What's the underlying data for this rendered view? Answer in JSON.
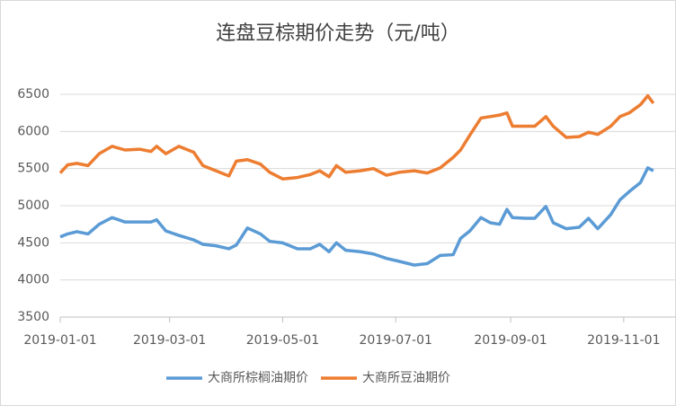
{
  "chart_data": {
    "type": "line",
    "title": "连盘豆棕期价走势（元/吨）",
    "x": [
      "2019-01-01",
      "2019-01-05",
      "2019-01-10",
      "2019-01-16",
      "2019-01-22",
      "2019-01-29",
      "2019-02-05",
      "2019-02-13",
      "2019-02-19",
      "2019-02-22",
      "2019-02-27",
      "2019-03-06",
      "2019-03-14",
      "2019-03-19",
      "2019-03-26",
      "2019-04-02",
      "2019-04-06",
      "2019-04-12",
      "2019-04-19",
      "2019-04-24",
      "2019-05-01",
      "2019-05-09",
      "2019-05-16",
      "2019-05-21",
      "2019-05-26",
      "2019-05-30",
      "2019-06-04",
      "2019-06-12",
      "2019-06-19",
      "2019-06-26",
      "2019-07-03",
      "2019-07-11",
      "2019-07-18",
      "2019-07-25",
      "2019-08-01",
      "2019-08-05",
      "2019-08-10",
      "2019-08-16",
      "2019-08-21",
      "2019-08-26",
      "2019-08-30",
      "2019-09-02",
      "2019-09-09",
      "2019-09-14",
      "2019-09-20",
      "2019-09-24",
      "2019-10-01",
      "2019-10-08",
      "2019-10-13",
      "2019-10-18",
      "2019-10-25",
      "2019-10-30",
      "2019-11-04",
      "2019-11-10",
      "2019-11-14",
      "2019-11-17"
    ],
    "series": [
      {
        "name": "大商所棕榈油期价",
        "color": "#5b9bd5",
        "values": [
          4580,
          4620,
          4650,
          4620,
          4750,
          4840,
          4780,
          4780,
          4780,
          4810,
          4660,
          4600,
          4540,
          4480,
          4460,
          4420,
          4470,
          4700,
          4620,
          4520,
          4500,
          4420,
          4420,
          4480,
          4380,
          4500,
          4400,
          4380,
          4350,
          4290,
          4250,
          4200,
          4220,
          4330,
          4340,
          4560,
          4660,
          4840,
          4770,
          4750,
          4950,
          4840,
          4830,
          4830,
          4990,
          4770,
          4690,
          4710,
          4830,
          4690,
          4880,
          5080,
          5190,
          5310,
          5510,
          5470
        ]
      },
      {
        "name": "大商所豆油期价",
        "color": "#ed7d31",
        "values": [
          5440,
          5550,
          5570,
          5540,
          5700,
          5800,
          5750,
          5760,
          5730,
          5800,
          5700,
          5800,
          5720,
          5540,
          5470,
          5400,
          5600,
          5620,
          5560,
          5450,
          5360,
          5380,
          5420,
          5470,
          5390,
          5540,
          5450,
          5470,
          5500,
          5410,
          5450,
          5470,
          5440,
          5510,
          5650,
          5750,
          5950,
          6180,
          6200,
          6220,
          6250,
          6070,
          6070,
          6070,
          6200,
          6070,
          5920,
          5930,
          5990,
          5960,
          6070,
          6200,
          6250,
          6360,
          6480,
          6380
        ]
      }
    ],
    "xlim": [
      "2019-01-01",
      "2019-11-20"
    ],
    "xticks": [
      "2019-01-01",
      "2019-03-01",
      "2019-05-01",
      "2019-07-01",
      "2019-09-01",
      "2019-11-01"
    ],
    "ylim": [
      3500,
      6500
    ],
    "yticks": [
      3500,
      4000,
      4500,
      5000,
      5500,
      6000,
      6500
    ],
    "grid": true,
    "legend": "bottom"
  }
}
